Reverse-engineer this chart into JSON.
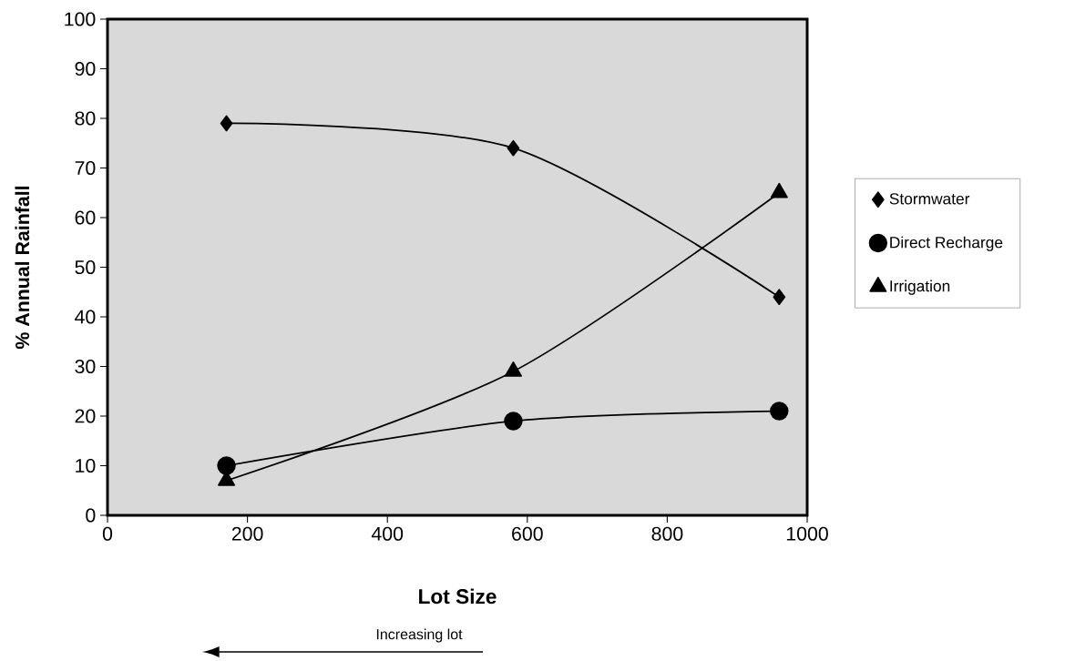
{
  "chart_data": {
    "type": "line",
    "xlabel": "Lot Size",
    "ylabel": "% Annual Rainfall",
    "x": [
      170,
      580,
      960
    ],
    "series": [
      {
        "name": "Stormwater",
        "color": "#000000",
        "marker": "diamond",
        "values": [
          79,
          74,
          44
        ]
      },
      {
        "name": "Direct Recharge",
        "color": "#000000",
        "marker": "circle",
        "values": [
          10,
          19,
          21
        ]
      },
      {
        "name": "Irrigation",
        "color": "#000000",
        "marker": "triangle",
        "values": [
          7,
          29,
          65
        ]
      }
    ],
    "xlim": [
      0,
      1000
    ],
    "ylim": [
      0,
      100
    ],
    "xticks": [
      0,
      200,
      400,
      600,
      800,
      1000
    ],
    "yticks": [
      0,
      10,
      20,
      30,
      40,
      50,
      60,
      70,
      80,
      90,
      100
    ],
    "grid": false,
    "legend": "right",
    "annotations": [
      "Increasing lot"
    ]
  }
}
